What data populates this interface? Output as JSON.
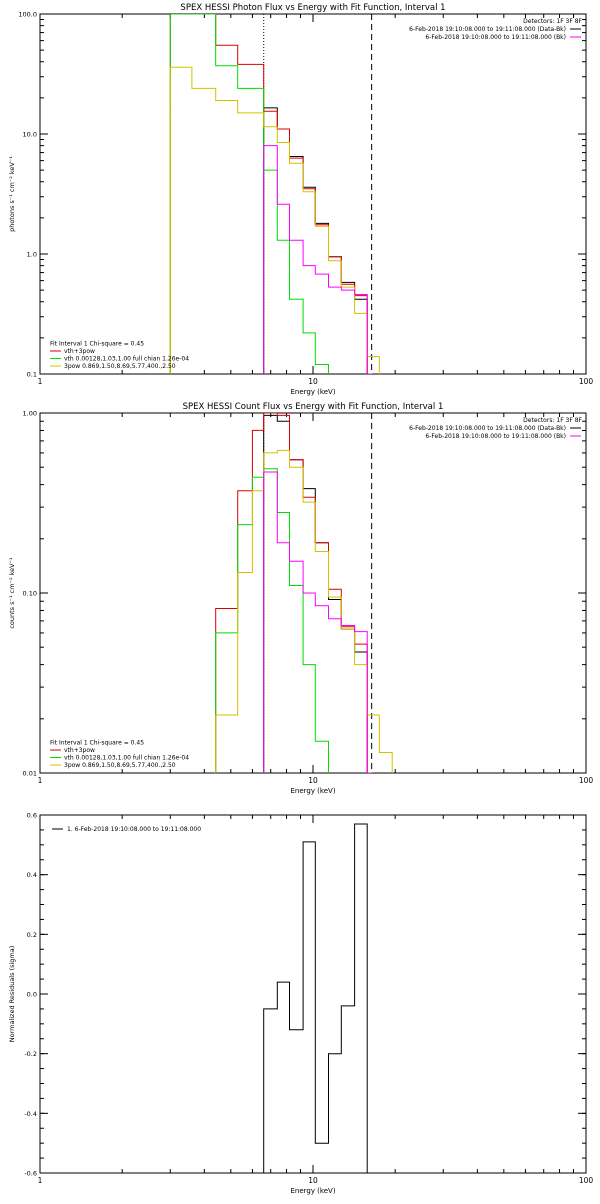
{
  "chart_data": [
    {
      "type": "line",
      "step": true,
      "title": "SPEX HESSI Photon Flux vs Energy with Fit Function, Interval 1",
      "xlabel": "Energy (keV)",
      "ylabel": "photons s⁻¹ cm⁻² keV⁻¹",
      "xscale": "log",
      "yscale": "log",
      "xlim": [
        1,
        100
      ],
      "ylim": [
        0.1,
        100
      ],
      "xticks": [
        {
          "value": 1,
          "label": "1"
        },
        {
          "value": 10,
          "label": "10"
        },
        {
          "value": 100,
          "label": "100"
        }
      ],
      "yticks": [
        {
          "value": 0.1,
          "label": "0.1"
        },
        {
          "value": 1,
          "label": "1.0"
        },
        {
          "value": 10,
          "label": "10.0"
        },
        {
          "value": 100,
          "label": "100.0"
        }
      ],
      "vlines": [
        {
          "x": 6.6,
          "style": "dotted"
        },
        {
          "x": 16.4,
          "style": "dashed"
        }
      ],
      "legend_topright": [
        {
          "text": "Detectors: 1F 3F 8F",
          "color": ""
        },
        {
          "text": "6-Feb-2018 19:10:08.000 to 19:11:08.000 (Data-Bk)",
          "color": "#000000"
        },
        {
          "text": "6-Feb-2018 19:10:08.000 to 19:11:08.000 (Bk)",
          "color": "#ff00ff"
        }
      ],
      "legend_bottomleft": [
        {
          "text": "Fit Interval 1    Chi-square = 0.45",
          "color": ""
        },
        {
          "text": "vth+3pow",
          "color": "#dd0000"
        },
        {
          "text": "vth 0.00128,1.03,1.00  full chian 1.26e-04",
          "color": "#00dd00"
        },
        {
          "text": "3pow 0.869,1.50,8.69,5.77,400.,2.50",
          "color": "#d4c000"
        }
      ],
      "series": [
        {
          "name": "Data-Bk",
          "color": "#000000",
          "edges": [
            6.6,
            7.4,
            8.2,
            9.2,
            10.2,
            11.4,
            12.7,
            14.2,
            15.8,
            16.4
          ],
          "values": [
            16.5,
            11.0,
            6.5,
            3.6,
            1.8,
            0.95,
            0.58,
            0.42,
            0.1
          ]
        },
        {
          "name": "vth+3pow",
          "color": "#dd0000",
          "edges": [
            3.0,
            3.6,
            4.4,
            5.3,
            6.6,
            7.4,
            8.2,
            9.2,
            10.2,
            11.4,
            12.7,
            14.2,
            15.8
          ],
          "values": [
            100,
            100,
            55,
            38,
            15.5,
            11.0,
            6.3,
            3.5,
            1.75,
            0.95,
            0.56,
            0.45
          ]
        },
        {
          "name": "vth",
          "color": "#00dd00",
          "edges": [
            3.0,
            3.6,
            4.4,
            5.3,
            6.6,
            7.4,
            8.2,
            9.2,
            10.2,
            11.4
          ],
          "values": [
            100,
            100,
            37,
            24,
            5.0,
            1.3,
            0.42,
            0.22,
            0.12
          ]
        },
        {
          "name": "3pow",
          "color": "#d4c000",
          "edges": [
            3.0,
            3.6,
            4.4,
            5.3,
            6.6,
            7.4,
            8.2,
            9.2,
            10.2,
            11.4,
            12.7,
            14.2,
            15.8,
            17.5
          ],
          "values": [
            36,
            24,
            19,
            15,
            11.5,
            8.5,
            5.7,
            3.3,
            1.7,
            0.88,
            0.53,
            0.32,
            0.14
          ]
        },
        {
          "name": "Bk",
          "color": "#ff00ff",
          "edges": [
            6.6,
            7.4,
            8.2,
            9.2,
            10.2,
            11.4,
            12.7,
            14.2,
            15.8,
            16.4
          ],
          "values": [
            8.0,
            2.6,
            1.3,
            0.8,
            0.68,
            0.53,
            0.5,
            0.46,
            0.1
          ]
        }
      ]
    },
    {
      "type": "line",
      "step": true,
      "title": "SPEX HESSI Count Flux vs Energy with Fit Function, Interval 1",
      "xlabel": "Energy (keV)",
      "ylabel": "counts s⁻¹ cm⁻² keV⁻¹",
      "xscale": "log",
      "yscale": "log",
      "xlim": [
        1,
        100
      ],
      "ylim": [
        0.01,
        1
      ],
      "xticks": [
        {
          "value": 1,
          "label": "1"
        },
        {
          "value": 10,
          "label": "10"
        },
        {
          "value": 100,
          "label": "100"
        }
      ],
      "yticks": [
        {
          "value": 0.01,
          "label": "0.01"
        },
        {
          "value": 0.1,
          "label": "0.10"
        },
        {
          "value": 1,
          "label": "1.00"
        }
      ],
      "vlines": [
        {
          "x": 6.6,
          "style": "dotted"
        },
        {
          "x": 16.4,
          "style": "dashed"
        }
      ],
      "legend_topright": [
        {
          "text": "Detectors: 1F 3F 8F",
          "color": ""
        },
        {
          "text": "6-Feb-2018 19:10:08.000 to 19:11:08.000 (Data-Bk)",
          "color": "#000000"
        },
        {
          "text": "6-Feb-2018 19:10:08.000 to 19:11:08.000 (Bk)",
          "color": "#ff00ff"
        }
      ],
      "legend_bottomleft": [
        {
          "text": "Fit Interval 1    Chi-square = 0.45",
          "color": ""
        },
        {
          "text": "vth+3pow",
          "color": "#dd0000"
        },
        {
          "text": "vth 0.00128,1.03,1.00  full chian 1.26e-04",
          "color": "#00dd00"
        },
        {
          "text": "3pow 0.869,1.50,8.69,5.77,400.,2.50",
          "color": "#d4c000"
        }
      ],
      "series": [
        {
          "name": "Data-Bk",
          "color": "#000000",
          "edges": [
            6.6,
            7.4,
            8.2,
            9.2,
            10.2,
            11.4,
            12.7,
            14.2,
            15.8,
            16.4
          ],
          "values": [
            0.97,
            0.9,
            0.55,
            0.38,
            0.19,
            0.092,
            0.063,
            0.047,
            0.01
          ]
        },
        {
          "name": "vth+3pow",
          "color": "#dd0000",
          "edges": [
            4.4,
            5.3,
            6.0,
            6.6,
            7.4,
            8.2,
            9.2,
            10.2,
            11.4,
            12.7,
            14.2,
            15.8
          ],
          "values": [
            0.082,
            0.37,
            0.8,
            1.0,
            0.97,
            0.55,
            0.34,
            0.19,
            0.105,
            0.065,
            0.052
          ]
        },
        {
          "name": "vth",
          "color": "#00dd00",
          "edges": [
            4.4,
            5.3,
            6.0,
            6.6,
            7.4,
            8.2,
            9.2,
            10.2,
            11.4
          ],
          "values": [
            0.06,
            0.24,
            0.44,
            0.49,
            0.28,
            0.11,
            0.04,
            0.015
          ]
        },
        {
          "name": "3pow",
          "color": "#d4c000",
          "edges": [
            4.4,
            5.3,
            6.0,
            6.6,
            7.4,
            8.2,
            9.2,
            10.2,
            11.4,
            12.7,
            14.2,
            15.8,
            17.5,
            19.5
          ],
          "values": [
            0.021,
            0.13,
            0.37,
            0.6,
            0.62,
            0.5,
            0.32,
            0.17,
            0.095,
            0.063,
            0.04,
            0.021,
            0.013
          ]
        },
        {
          "name": "Bk",
          "color": "#ff00ff",
          "edges": [
            6.6,
            7.4,
            8.2,
            9.2,
            10.2,
            11.4,
            12.7,
            14.2,
            15.8,
            16.4
          ],
          "values": [
            0.47,
            0.19,
            0.15,
            0.1,
            0.085,
            0.072,
            0.066,
            0.061,
            0.01
          ]
        }
      ]
    },
    {
      "type": "line",
      "step": true,
      "title": "",
      "xlabel": "Energy (keV)",
      "ylabel": "Normalized Residuals (sigma)",
      "xscale": "log",
      "yscale": "linear",
      "xlim": [
        1,
        100
      ],
      "ylim": [
        -0.6,
        0.6
      ],
      "xticks": [
        {
          "value": 1,
          "label": "1"
        },
        {
          "value": 10,
          "label": "10"
        },
        {
          "value": 100,
          "label": "100"
        }
      ],
      "yticks": [
        {
          "value": -0.6,
          "label": "-0.6"
        },
        {
          "value": -0.4,
          "label": "-0.4"
        },
        {
          "value": -0.2,
          "label": "-0.2"
        },
        {
          "value": 0.0,
          "label": "0.0"
        },
        {
          "value": 0.2,
          "label": "0.2"
        },
        {
          "value": 0.4,
          "label": "0.4"
        },
        {
          "value": 0.6,
          "label": "0.6"
        }
      ],
      "vlines": [],
      "legend_topleft": [
        {
          "text": "1.  6-Feb-2018 19:10:08.000 to 19:11:08.000",
          "color": "#000000"
        }
      ],
      "series": [
        {
          "name": "residuals",
          "color": "#000000",
          "edges": [
            6.6,
            7.4,
            8.2,
            9.2,
            10.2,
            11.4,
            12.7,
            14.2,
            15.8,
            16.4
          ],
          "values": [
            -0.05,
            0.04,
            -0.12,
            0.51,
            -0.5,
            -0.2,
            -0.04,
            0.57,
            -0.6
          ]
        }
      ]
    }
  ]
}
